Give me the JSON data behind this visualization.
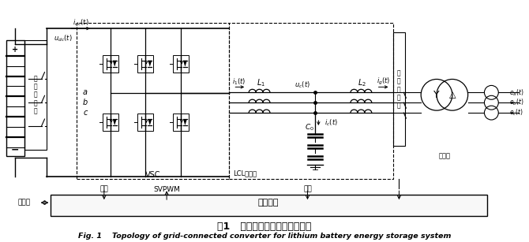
{
  "title_cn": "图1   锂电池储能并网变换器结构",
  "title_en": "Fig. 1    Topology of grid-connected converter for lithium battery energy storage system",
  "bg_color": "#ffffff",
  "line_color": "#000000",
  "label_zhi_kong_qi_chu_jie": "制\n控\n器\n触\n接",
  "label_zhi_kong_qi_chu_jie2": "制\n控\n器\n触\n接",
  "label_LCL": "LCL滤波器",
  "label_cai_yang1": "采样",
  "label_cai_yang2": "采样",
  "label_kong_zhi": "控制系统",
  "label_shang_wei_ji": "上位机",
  "label_bian_ya_qi": "变压器",
  "label_VSC": "VSC",
  "label_SVPWM": "SVPWM",
  "label_a": "a",
  "label_b": "b",
  "label_c": "c"
}
